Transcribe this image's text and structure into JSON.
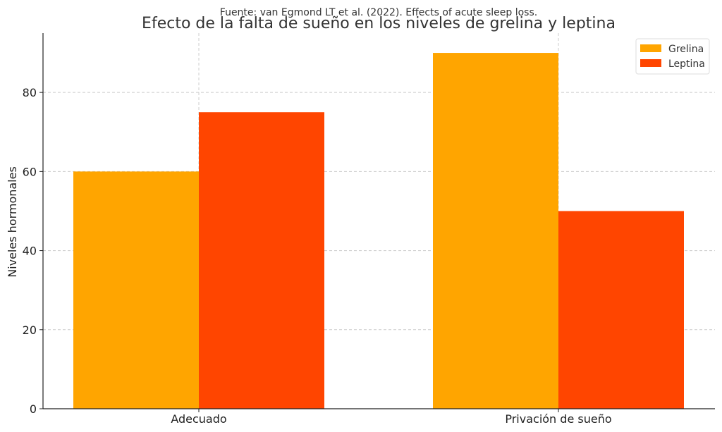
{
  "chart_data": {
    "type": "bar",
    "source": "Fuente: van Egmond LT et al. (2022). Effects of acute sleep loss.",
    "title": "Efecto de la falta de sueño en los niveles de grelina y leptina",
    "xlabel": "",
    "ylabel": "Niveles hormonales",
    "categories": [
      "Adecuado",
      "Privación de sueño"
    ],
    "series": [
      {
        "name": "Grelina",
        "values": [
          60,
          90
        ],
        "color": "#FFA500"
      },
      {
        "name": "Leptina",
        "values": [
          75,
          50
        ],
        "color": "#FF4500"
      }
    ],
    "ylim": [
      0,
      95
    ],
    "yticks": [
      0,
      20,
      40,
      60,
      80
    ],
    "grid": true,
    "legend_position": "top-right"
  }
}
